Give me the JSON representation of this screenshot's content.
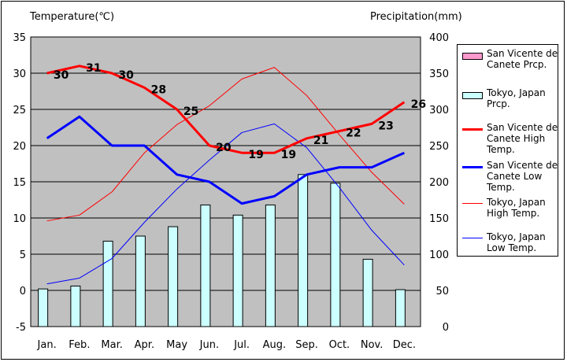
{
  "chart_data": {
    "type": "bar+line",
    "left_axis_title": "Temperature(℃)",
    "right_axis_title": "Precipitation(mm)",
    "categories": [
      "Jan.",
      "Feb.",
      "Mar.",
      "Apr.",
      "May",
      "Jun.",
      "Jul.",
      "Aug.",
      "Sep.",
      "Oct.",
      "Nov.",
      "Dec."
    ],
    "left_ylim": [
      -5,
      35
    ],
    "left_ticks": [
      35,
      30,
      25,
      20,
      15,
      10,
      5,
      0,
      -5
    ],
    "right_ylim": [
      0,
      400
    ],
    "right_ticks": [
      400,
      350,
      300,
      250,
      200,
      150,
      100,
      50,
      0
    ],
    "grid": true,
    "plot_background": "#c0c0c0",
    "legend_position": "right",
    "series": [
      {
        "name": "San Vicente de Canete Prcp.",
        "kind": "bar",
        "axis": "right",
        "color": "#ff99cc",
        "values": [
          0,
          0,
          0,
          0,
          0,
          0,
          0,
          0,
          0,
          0,
          0,
          0
        ]
      },
      {
        "name": "Tokyo, Japan Prcp.",
        "kind": "bar",
        "axis": "right",
        "color": "#ccffff",
        "values": [
          52,
          56,
          118,
          125,
          138,
          168,
          154,
          168,
          210,
          198,
          93,
          51
        ]
      },
      {
        "name": "San Vicente de Canete High Temp.",
        "kind": "line",
        "axis": "left",
        "color": "#ff0000",
        "width": 3,
        "labels": true,
        "values": [
          30,
          31,
          30,
          28,
          25,
          20,
          19,
          19,
          21,
          22,
          23,
          26
        ]
      },
      {
        "name": "San Vicente de Canete Low Temp.",
        "kind": "line",
        "axis": "left",
        "color": "#0000ff",
        "width": 3,
        "values": [
          21,
          24,
          20,
          20,
          16,
          15,
          12,
          13,
          16,
          17,
          17,
          19
        ]
      },
      {
        "name": "Tokyo, Japan High Temp.",
        "kind": "line",
        "axis": "left",
        "color": "#ff0000",
        "width": 1,
        "values": [
          9.6,
          10.4,
          13.6,
          19,
          22.9,
          25.5,
          29.2,
          30.8,
          26.9,
          21.5,
          16.3,
          11.9
        ]
      },
      {
        "name": "Tokyo, Japan Low Temp.",
        "kind": "line",
        "axis": "left",
        "color": "#0000ff",
        "width": 1,
        "values": [
          0.9,
          1.7,
          4.4,
          9.4,
          14,
          18,
          21.8,
          23,
          19.7,
          14.2,
          8.3,
          3.5
        ]
      }
    ]
  }
}
